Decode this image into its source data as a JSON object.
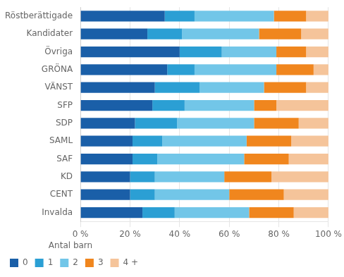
{
  "chart_data": {
    "type": "bar",
    "orientation": "horizontal",
    "stacked": true,
    "categories": [
      "Röstberättigade",
      "Kandidater",
      "Övriga",
      "GRÖNA",
      "VÄNST",
      "SFP",
      "SDP",
      "SAML",
      "SAF",
      "KD",
      "CENT",
      "Invalda"
    ],
    "series": [
      {
        "name": "0",
        "color": "#1a5fa8",
        "values": [
          34,
          27,
          40,
          35,
          30,
          29,
          22,
          21,
          21,
          20,
          20,
          25
        ]
      },
      {
        "name": "1",
        "color": "#2b9fd4",
        "values": [
          12,
          14,
          17,
          11,
          18,
          13,
          17,
          12,
          10,
          10,
          10,
          13
        ]
      },
      {
        "name": "2",
        "color": "#72c6e8",
        "values": [
          32,
          31,
          22,
          33,
          26,
          28,
          31,
          34,
          35,
          28,
          30,
          30
        ]
      },
      {
        "name": "3",
        "color": "#f0861e",
        "values": [
          13,
          17,
          12,
          15,
          17,
          9,
          18,
          18,
          18,
          19,
          22,
          18
        ]
      },
      {
        "name": "4 +",
        "color": "#f5c49a",
        "values": [
          9,
          11,
          9,
          6,
          9,
          21,
          12,
          15,
          16,
          23,
          18,
          14
        ]
      }
    ],
    "xlim": [
      0,
      100
    ],
    "xticks": [
      {
        "value": 0,
        "label": "0 %"
      },
      {
        "value": 20,
        "label": "20 %"
      },
      {
        "value": 40,
        "label": "40 %"
      },
      {
        "value": 60,
        "label": "60 %"
      },
      {
        "value": 80,
        "label": "80 %"
      },
      {
        "value": 100,
        "label": "100 %"
      }
    ],
    "grid": true,
    "legend": "lower left",
    "legend_title": "Antal barn"
  }
}
